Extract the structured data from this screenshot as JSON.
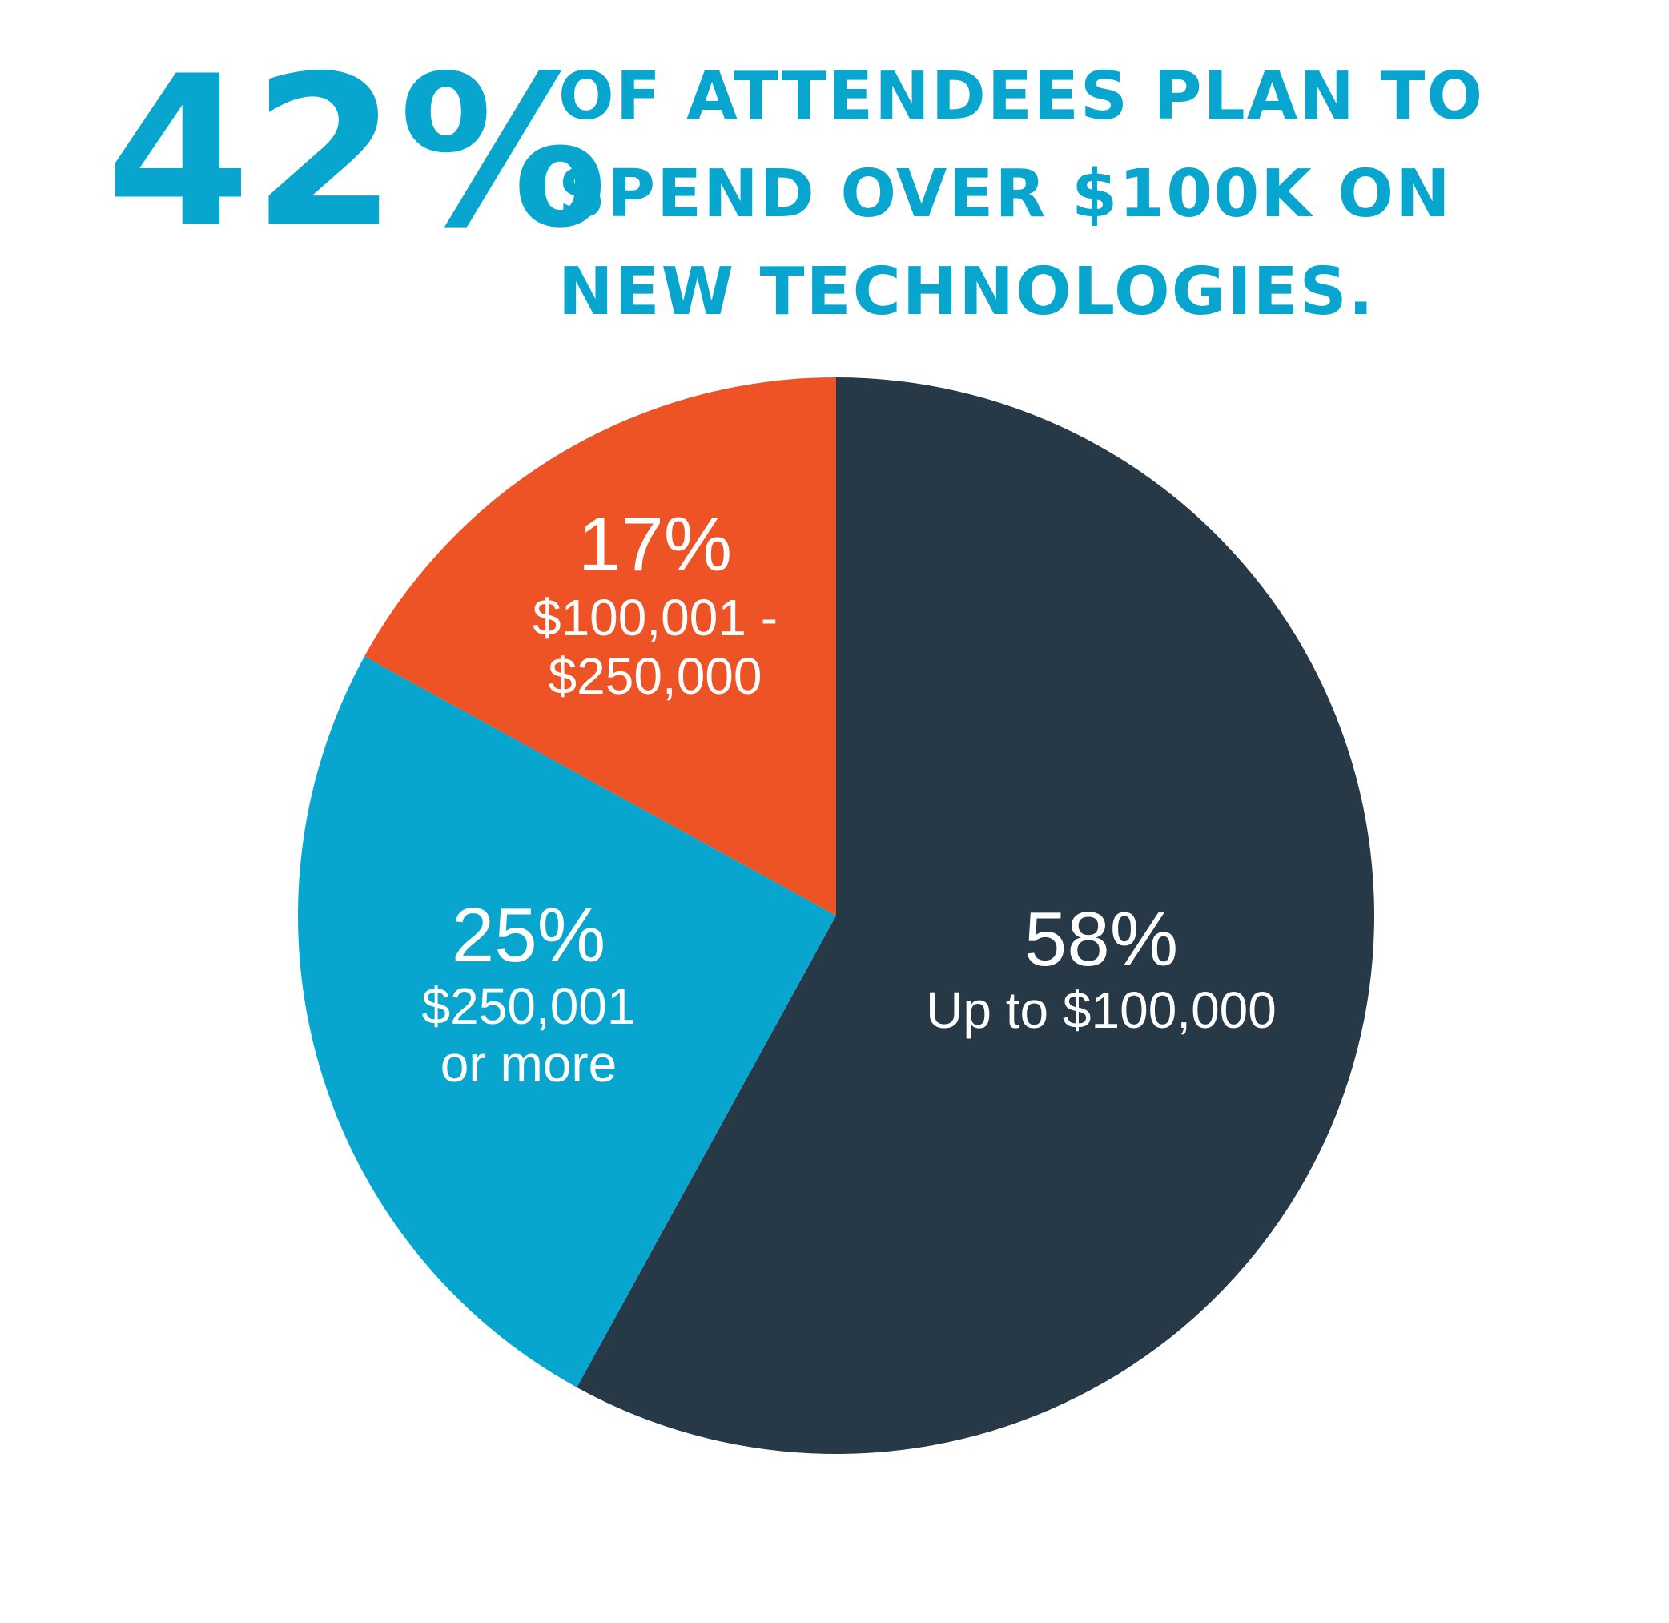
{
  "header": {
    "stat": "42%",
    "headline_lines": [
      "OF ATTENDEES PLAN TO",
      "SPEND OVER $100K ON",
      "NEW TECHNOLOGIES."
    ]
  },
  "colors": {
    "accent": "#08A6CF",
    "dark": "#273847",
    "orange": "#EE5325",
    "label_text": "#FFFFFF",
    "background": "#FFFFFF"
  },
  "chart_data": {
    "type": "pie",
    "start_angle_deg": 0,
    "direction": "clockwise",
    "slices": [
      {
        "label": "Up to $100,000",
        "label_lines": [
          "Up to $100,000"
        ],
        "value": 58,
        "pct_label": "58%",
        "color": "#273847"
      },
      {
        "label": "$250,001 or more",
        "label_lines": [
          "$250,001",
          "or more"
        ],
        "value": 25,
        "pct_label": "25%",
        "color": "#08A6CF"
      },
      {
        "label": "$100,001 - $250,000",
        "label_lines": [
          "$100,001 -",
          "$250,000"
        ],
        "value": 17,
        "pct_label": "17%",
        "color": "#EE5325"
      }
    ]
  }
}
